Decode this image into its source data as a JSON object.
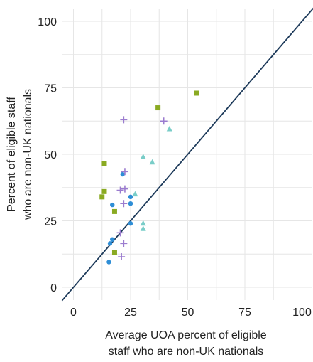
{
  "chart_data": {
    "type": "scatter",
    "xlabel": [
      "Average UOA percent of eligible",
      "staff who are non-UK nationals"
    ],
    "ylabel": [
      "Percent of eligible staff",
      "who are non-UK nationals"
    ],
    "xlim": [
      -5,
      105
    ],
    "ylim": [
      -5,
      105
    ],
    "x_ticks": [
      0,
      25,
      50,
      75,
      100
    ],
    "y_ticks": [
      0,
      25,
      50,
      75,
      100
    ],
    "grid": true,
    "reference_line": "y = x",
    "colors": {
      "blue_circle": "#2e8ed6",
      "green_square": "#8aaa22",
      "purple_plus": "#9b7ccf",
      "teal_triangle": "#79cdc8",
      "line": "#1d3a5a"
    },
    "series": [
      {
        "marker": "circle",
        "color": "#2e8ed6",
        "points": [
          [
            15.5,
            9.5
          ],
          [
            16,
            16.5
          ],
          [
            17,
            18
          ],
          [
            17,
            31
          ],
          [
            21.5,
            42.5
          ],
          [
            25,
            34
          ],
          [
            25,
            31.5
          ],
          [
            25,
            24
          ]
        ]
      },
      {
        "marker": "square",
        "color": "#8aaa22",
        "points": [
          [
            12.5,
            34
          ],
          [
            13.5,
            36
          ],
          [
            13.5,
            46.5
          ],
          [
            18,
            28.5
          ],
          [
            18,
            13
          ],
          [
            37,
            67.5
          ],
          [
            54,
            73
          ]
        ]
      },
      {
        "marker": "plus",
        "color": "#9b7ccf",
        "points": [
          [
            20.5,
            36.5
          ],
          [
            22.5,
            37
          ],
          [
            22.5,
            43.5
          ],
          [
            22,
            63
          ],
          [
            22,
            31.5
          ],
          [
            22,
            16.5
          ],
          [
            21,
            11.5
          ],
          [
            20.5,
            20.5
          ],
          [
            39.5,
            62.5
          ]
        ]
      },
      {
        "marker": "triangle",
        "color": "#79cdc8",
        "points": [
          [
            27,
            35
          ],
          [
            30.5,
            49
          ],
          [
            34.5,
            47
          ],
          [
            42,
            59.5
          ],
          [
            30.5,
            24
          ],
          [
            30.5,
            22
          ]
        ]
      }
    ]
  }
}
